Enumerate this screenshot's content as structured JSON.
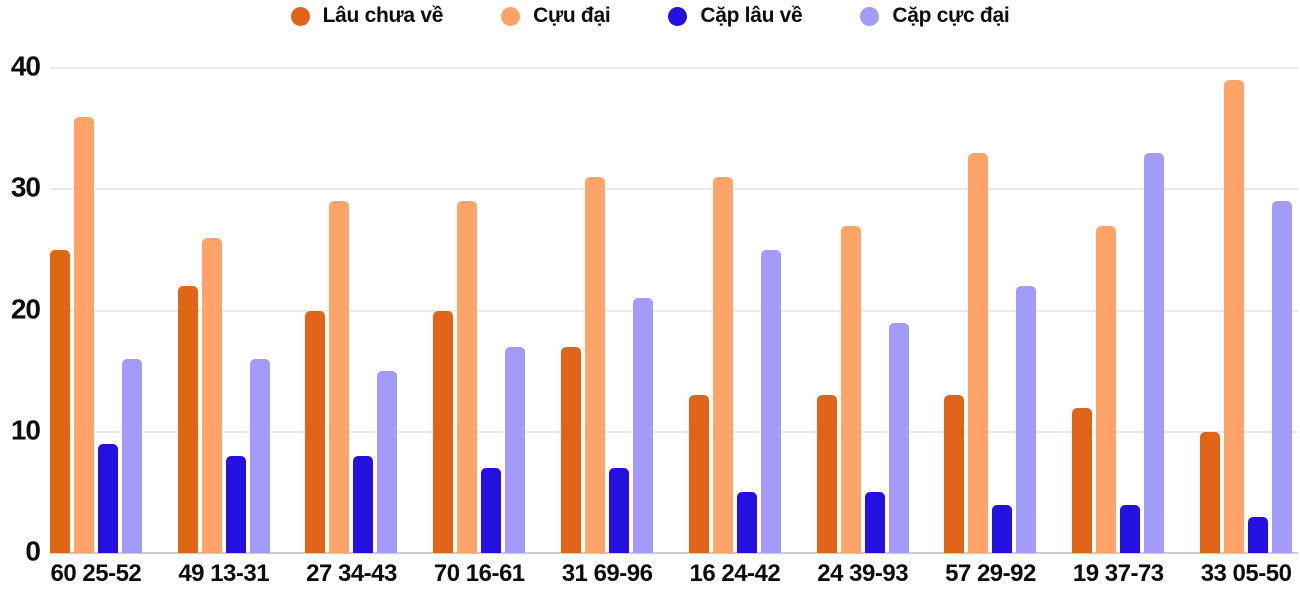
{
  "chart_data": {
    "type": "bar",
    "title": "",
    "xlabel": "",
    "ylabel": "",
    "ylim": [
      0,
      40
    ],
    "yticks": [
      0,
      10,
      20,
      30,
      40
    ],
    "grid": true,
    "legend_position": "top-center",
    "categories": [
      "60 25-52",
      "49 13-31",
      "27 34-43",
      "70 16-61",
      "31 69-96",
      "16 24-42",
      "24 39-93",
      "57 29-92",
      "19 37-73",
      "33 05-50"
    ],
    "series": [
      {
        "name": "Lâu chưa về",
        "color": "#e06519",
        "values": [
          25,
          22,
          20,
          20,
          17,
          13,
          13,
          13,
          12,
          10
        ]
      },
      {
        "name": "Cựu đại",
        "color": "#ffa469",
        "values": [
          36,
          26,
          29,
          29,
          31,
          31,
          27,
          33,
          27,
          39
        ]
      },
      {
        "name": "Cặp lâu về",
        "color": "#2411df",
        "values": [
          9,
          8,
          8,
          7,
          7,
          5,
          5,
          4,
          4,
          3
        ]
      },
      {
        "name": "Cặp cực đại",
        "color": "#a29bfa",
        "values": [
          16,
          16,
          15,
          17,
          21,
          25,
          19,
          22,
          33,
          29
        ]
      }
    ],
    "colors": {
      "text": "#0d0d0d",
      "gridline": "#e9e9e9",
      "baseline": "#cccccc",
      "background": "#ffffff"
    }
  }
}
